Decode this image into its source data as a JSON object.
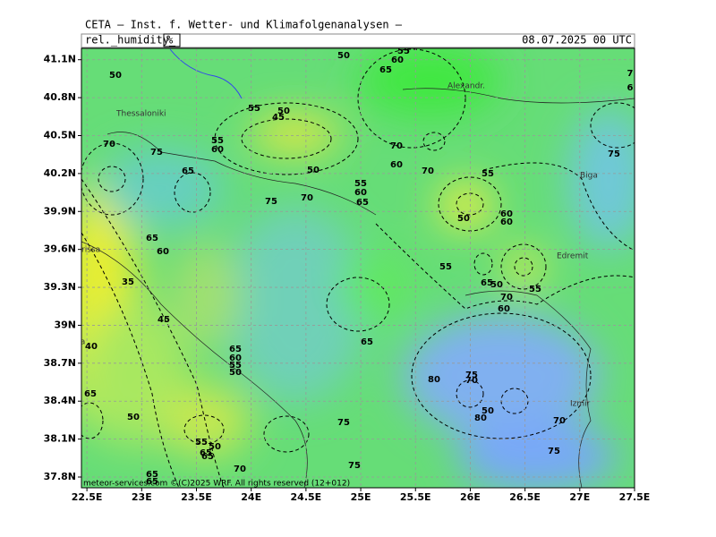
{
  "header": {
    "title": "CETA – Inst. f. Wetter- und Klimafolgenanalysen –",
    "variable": "rel._humidity_",
    "unit": "%",
    "valid_time": "08.07.2025 00 UTC"
  },
  "map": {
    "lat_range": [
      37.715,
      41.19
    ],
    "lon_range": [
      22.45,
      27.5
    ],
    "lat_ticks": [
      {
        "value": 41.1,
        "label": "41.1N"
      },
      {
        "value": 40.8,
        "label": "40.8N"
      },
      {
        "value": 40.5,
        "label": "40.5N"
      },
      {
        "value": 40.2,
        "label": "40.2N"
      },
      {
        "value": 39.9,
        "label": "39.9N"
      },
      {
        "value": 39.6,
        "label": "39.6N"
      },
      {
        "value": 39.3,
        "label": "39.3N"
      },
      {
        "value": 39,
        "label": "39N"
      },
      {
        "value": 38.7,
        "label": "38.7N"
      },
      {
        "value": 38.4,
        "label": "38.4N"
      },
      {
        "value": 38.1,
        "label": "38.1N"
      },
      {
        "value": 37.8,
        "label": "37.8N"
      }
    ],
    "lon_ticks": [
      {
        "value": 22.5,
        "label": "22.5E"
      },
      {
        "value": 23,
        "label": "23E"
      },
      {
        "value": 23.5,
        "label": "23.5E"
      },
      {
        "value": 24,
        "label": "24E"
      },
      {
        "value": 24.5,
        "label": "24.5E"
      },
      {
        "value": 25,
        "label": "25E"
      },
      {
        "value": 25.5,
        "label": "25.5E"
      },
      {
        "value": 26,
        "label": "26E"
      },
      {
        "value": 26.5,
        "label": "26.5E"
      },
      {
        "value": 27,
        "label": "27E"
      },
      {
        "value": 27.5,
        "label": "27.5E"
      }
    ],
    "places": [
      "Thessaloniki",
      "Alexandr.",
      "Biga",
      "Edremit",
      "Izmir",
      "rissa",
      "Lamia"
    ],
    "contour_labels": [
      "50",
      "50",
      "55",
      "60",
      "65",
      "55",
      "45",
      "50",
      "55",
      "60",
      "70",
      "70",
      "75",
      "65",
      "75",
      "70",
      "50",
      "55",
      "60",
      "65",
      "70",
      "60",
      "55",
      "60",
      "50",
      "60",
      "75",
      "65",
      "60",
      "55",
      "50",
      "55",
      "65",
      "70",
      "60",
      "35",
      "45",
      "40",
      "65",
      "60",
      "55",
      "50",
      "65",
      "65",
      "50",
      "55",
      "50",
      "65",
      "65",
      "65",
      "75",
      "70",
      "80",
      "75",
      "65",
      "80",
      "50",
      "70",
      "75",
      "75",
      "70",
      "7",
      "6"
    ]
  },
  "footer": {
    "copyright": "meteor-services.com ©(C)2025 WRF. All rights reserved (12+012)"
  }
}
